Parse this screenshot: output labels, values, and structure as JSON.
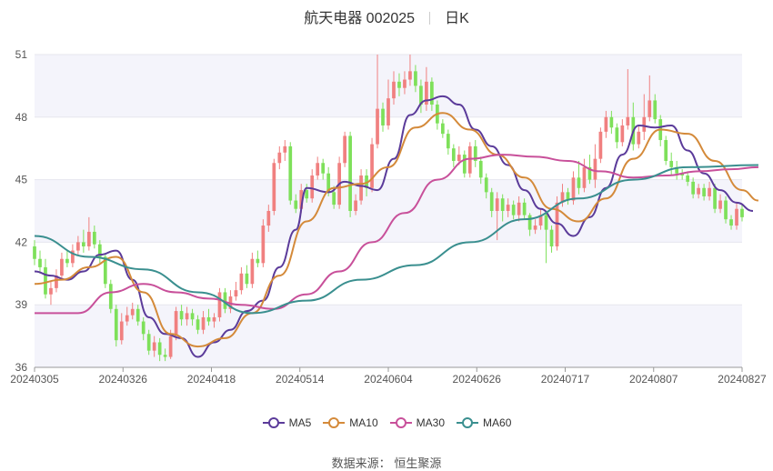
{
  "header": {
    "title": "航天电器 002025",
    "period": "日K"
  },
  "source": {
    "label": "数据来源：",
    "name": "恒生聚源"
  },
  "legend": [
    {
      "name": "MA5",
      "color": "#5b3b9a"
    },
    {
      "name": "MA10",
      "color": "#d48a3a"
    },
    {
      "name": "MA30",
      "color": "#c8509a"
    },
    {
      "name": "MA60",
      "color": "#3a8f8f"
    }
  ],
  "colors": {
    "up": "#f08080",
    "down": "#7ee05a"
  },
  "chart_data": {
    "type": "candlestick",
    "ylim": [
      36,
      51
    ],
    "yticks": [
      36,
      39,
      42,
      45,
      48,
      51
    ],
    "xtick_labels": [
      "20240305",
      "20240326",
      "20240418",
      "20240514",
      "20240604",
      "20240626",
      "20240717",
      "20240807",
      "20240827"
    ],
    "xtick_index": [
      0,
      15,
      30,
      45,
      60,
      75,
      90,
      105,
      120
    ],
    "candles": [
      [
        41.8,
        41.2,
        42.1,
        40.9
      ],
      [
        41.2,
        40.8,
        41.6,
        40.5
      ],
      [
        40.8,
        39.5,
        41.2,
        39.3
      ],
      [
        39.5,
        39.8,
        40.1,
        39.0
      ],
      [
        39.8,
        40.4,
        40.7,
        39.6
      ],
      [
        40.4,
        41.2,
        41.5,
        40.2
      ],
      [
        41.2,
        41.0,
        41.6,
        40.8
      ],
      [
        41.0,
        41.6,
        41.9,
        40.8
      ],
      [
        41.6,
        42.0,
        42.3,
        41.4
      ],
      [
        42.0,
        41.8,
        42.6,
        41.5
      ],
      [
        41.8,
        42.5,
        43.2,
        41.6
      ],
      [
        42.5,
        41.9,
        42.8,
        41.7
      ],
      [
        41.9,
        41.3,
        42.1,
        41.0
      ],
      [
        41.3,
        40.0,
        41.4,
        39.8
      ],
      [
        40.0,
        38.8,
        40.2,
        38.6
      ],
      [
        38.8,
        37.3,
        39.0,
        37.0
      ],
      [
        37.3,
        38.2,
        38.6,
        37.1
      ],
      [
        38.2,
        38.5,
        38.9,
        38.0
      ],
      [
        38.5,
        38.8,
        39.1,
        38.3
      ],
      [
        38.8,
        38.2,
        39.0,
        38.0
      ],
      [
        38.2,
        37.6,
        38.4,
        37.3
      ],
      [
        37.6,
        36.8,
        37.8,
        36.6
      ],
      [
        36.8,
        37.2,
        37.5,
        36.5
      ],
      [
        37.2,
        36.6,
        37.4,
        36.3
      ],
      [
        36.6,
        36.5,
        36.9,
        36.3
      ],
      [
        36.5,
        37.5,
        37.8,
        36.4
      ],
      [
        37.5,
        38.7,
        38.9,
        37.3
      ],
      [
        38.7,
        38.3,
        39.0,
        38.0
      ],
      [
        38.3,
        38.6,
        38.9,
        38.0
      ],
      [
        38.6,
        38.3,
        38.8,
        38.0
      ],
      [
        38.3,
        37.8,
        38.5,
        37.6
      ],
      [
        37.8,
        38.4,
        38.7,
        37.6
      ],
      [
        38.4,
        38.2,
        38.8,
        38.0
      ],
      [
        38.2,
        38.4,
        38.6,
        37.9
      ],
      [
        38.4,
        39.6,
        39.8,
        38.2
      ],
      [
        39.6,
        38.8,
        39.8,
        38.6
      ],
      [
        38.8,
        39.4,
        39.7,
        38.6
      ],
      [
        39.4,
        39.7,
        40.1,
        39.2
      ],
      [
        39.7,
        40.5,
        40.8,
        39.5
      ],
      [
        40.5,
        40.0,
        40.9,
        39.8
      ],
      [
        40.0,
        41.2,
        41.5,
        39.8
      ],
      [
        41.2,
        41.0,
        41.6,
        40.8
      ],
      [
        41.0,
        42.8,
        43.1,
        40.8
      ],
      [
        42.8,
        43.5,
        43.8,
        42.5
      ],
      [
        43.5,
        45.8,
        46.0,
        43.3
      ],
      [
        45.8,
        46.3,
        46.6,
        45.5
      ],
      [
        46.3,
        46.6,
        46.9,
        45.9
      ],
      [
        46.6,
        44.0,
        46.8,
        43.8
      ],
      [
        44.0,
        43.6,
        44.3,
        43.4
      ],
      [
        43.6,
        44.5,
        44.8,
        43.4
      ],
      [
        44.5,
        44.1,
        44.8,
        43.9
      ],
      [
        44.1,
        45.2,
        45.5,
        43.9
      ],
      [
        45.2,
        45.8,
        46.1,
        45.0
      ],
      [
        45.8,
        45.3,
        46.0,
        45.0
      ],
      [
        45.3,
        44.4,
        45.6,
        44.2
      ],
      [
        44.4,
        43.8,
        44.7,
        43.6
      ],
      [
        43.8,
        45.8,
        46.1,
        43.6
      ],
      [
        45.8,
        47.1,
        47.3,
        45.6
      ],
      [
        47.1,
        43.5,
        47.3,
        43.2
      ],
      [
        43.5,
        44.0,
        44.3,
        43.3
      ],
      [
        44.0,
        45.2,
        45.5,
        43.8
      ],
      [
        45.2,
        44.6,
        45.5,
        44.2
      ],
      [
        44.6,
        46.7,
        47.0,
        44.4
      ],
      [
        46.7,
        48.4,
        51.0,
        46.5
      ],
      [
        48.4,
        47.6,
        48.7,
        47.3
      ],
      [
        47.6,
        48.9,
        49.8,
        47.4
      ],
      [
        48.9,
        49.7,
        50.2,
        48.6
      ],
      [
        49.7,
        49.4,
        50.1,
        49.0
      ],
      [
        49.4,
        49.8,
        50.2,
        49.1
      ],
      [
        49.8,
        50.2,
        51.0,
        49.5
      ],
      [
        50.2,
        49.5,
        50.5,
        49.2
      ],
      [
        49.5,
        48.6,
        49.8,
        48.2
      ],
      [
        48.6,
        49.7,
        50.4,
        48.3
      ],
      [
        49.7,
        48.6,
        49.9,
        48.3
      ],
      [
        48.6,
        47.7,
        48.8,
        47.4
      ],
      [
        47.7,
        47.2,
        47.9,
        47.0
      ],
      [
        47.2,
        46.5,
        47.4,
        46.2
      ],
      [
        46.5,
        45.9,
        46.7,
        45.6
      ],
      [
        45.9,
        46.2,
        46.6,
        45.7
      ],
      [
        46.2,
        45.3,
        46.4,
        45.1
      ],
      [
        45.3,
        46.6,
        46.8,
        45.1
      ],
      [
        46.6,
        45.9,
        46.9,
        45.6
      ],
      [
        45.9,
        45.1,
        46.1,
        44.8
      ],
      [
        45.1,
        44.4,
        45.3,
        44.1
      ],
      [
        44.4,
        43.5,
        44.6,
        43.2
      ],
      [
        43.5,
        44.1,
        44.4,
        42.1
      ],
      [
        44.1,
        43.5,
        44.3,
        43.0
      ],
      [
        43.5,
        43.8,
        44.1,
        43.2
      ],
      [
        43.8,
        43.3,
        44.0,
        43.1
      ],
      [
        43.3,
        43.9,
        44.2,
        43.0
      ],
      [
        43.9,
        43.3,
        44.1,
        43.1
      ],
      [
        43.3,
        42.6,
        43.4,
        42.3
      ],
      [
        42.6,
        42.8,
        43.1,
        42.4
      ],
      [
        42.8,
        43.3,
        43.6,
        42.6
      ],
      [
        43.3,
        42.6,
        43.5,
        41.0
      ],
      [
        42.6,
        41.8,
        42.8,
        41.5
      ],
      [
        41.8,
        43.9,
        44.2,
        41.6
      ],
      [
        43.9,
        44.4,
        44.8,
        43.7
      ],
      [
        44.4,
        44.0,
        44.6,
        43.8
      ],
      [
        44.0,
        45.1,
        45.4,
        43.8
      ],
      [
        45.1,
        44.6,
        45.9,
        44.3
      ],
      [
        44.6,
        45.6,
        46.0,
        44.4
      ],
      [
        45.6,
        45.0,
        46.2,
        44.8
      ],
      [
        45.0,
        46.0,
        46.7,
        44.6
      ],
      [
        46.0,
        47.3,
        47.5,
        45.8
      ],
      [
        47.3,
        48.0,
        48.3,
        47.0
      ],
      [
        48.0,
        47.5,
        48.3,
        47.2
      ],
      [
        47.5,
        46.8,
        47.7,
        46.5
      ],
      [
        46.8,
        47.6,
        47.9,
        46.6
      ],
      [
        47.6,
        48.0,
        50.3,
        47.4
      ],
      [
        48.0,
        46.7,
        48.7,
        46.4
      ],
      [
        46.7,
        47.3,
        47.6,
        46.5
      ],
      [
        47.3,
        48.0,
        49.1,
        46.9
      ],
      [
        48.0,
        48.8,
        50.0,
        47.8
      ],
      [
        48.8,
        47.9,
        49.1,
        47.7
      ],
      [
        47.9,
        46.9,
        48.1,
        46.6
      ],
      [
        46.9,
        45.9,
        47.1,
        45.7
      ],
      [
        45.9,
        45.6,
        46.3,
        45.2
      ],
      [
        45.6,
        45.3,
        45.9,
        45.0
      ],
      [
        45.3,
        45.2,
        45.5,
        45.0
      ],
      [
        45.2,
        44.9,
        45.4,
        44.7
      ],
      [
        44.9,
        44.3,
        45.1,
        44.1
      ],
      [
        44.3,
        44.6,
        44.8,
        44.1
      ],
      [
        44.6,
        44.2,
        44.8,
        44.0
      ],
      [
        44.2,
        44.6,
        44.9,
        44.0
      ],
      [
        44.6,
        43.6,
        44.8,
        43.4
      ],
      [
        43.6,
        44.0,
        44.3,
        43.4
      ],
      [
        44.0,
        43.1,
        44.2,
        42.9
      ],
      [
        43.1,
        42.8,
        43.3,
        42.6
      ],
      [
        42.8,
        43.6,
        43.9,
        42.6
      ],
      [
        43.6,
        43.2,
        43.8,
        43.0
      ]
    ],
    "ma_series": {
      "MA5": [
        [
          0,
          40.6
        ],
        [
          3,
          40.4
        ],
        [
          6,
          40.2
        ],
        [
          9,
          40.6
        ],
        [
          12,
          41.4
        ],
        [
          15,
          41.6
        ],
        [
          18,
          40.2
        ],
        [
          21,
          38.4
        ],
        [
          24,
          37.6
        ],
        [
          27,
          37.4
        ],
        [
          30,
          36.5
        ],
        [
          33,
          37.2
        ],
        [
          36,
          37.8
        ],
        [
          39,
          38.7
        ],
        [
          42,
          39.2
        ],
        [
          45,
          40.8
        ],
        [
          48,
          42.6
        ],
        [
          50,
          44.6
        ],
        [
          54,
          44.4
        ],
        [
          57,
          44.9
        ],
        [
          60,
          44.7
        ],
        [
          63,
          44.5
        ],
        [
          66,
          46.0
        ],
        [
          69,
          48.1
        ],
        [
          72,
          48.8
        ],
        [
          75,
          49.0
        ],
        [
          78,
          48.6
        ],
        [
          81,
          47.4
        ],
        [
          84,
          46.6
        ],
        [
          87,
          45.7
        ],
        [
          90,
          44.5
        ],
        [
          93,
          43.6
        ],
        [
          96,
          42.9
        ],
        [
          99,
          42.3
        ],
        [
          102,
          43.2
        ],
        [
          105,
          44.6
        ],
        [
          108,
          46.2
        ],
        [
          111,
          47.6
        ],
        [
          114,
          47.5
        ],
        [
          117,
          47.6
        ],
        [
          120,
          46.4
        ],
        [
          123,
          45.3
        ],
        [
          126,
          44.5
        ],
        [
          129,
          43.9
        ],
        [
          132,
          43.5
        ]
      ],
      "MA10": [
        [
          0,
          40.0
        ],
        [
          5,
          40.2
        ],
        [
          10,
          40.8
        ],
        [
          15,
          41.3
        ],
        [
          20,
          39.6
        ],
        [
          25,
          37.6
        ],
        [
          30,
          37.0
        ],
        [
          35,
          37.4
        ],
        [
          40,
          38.6
        ],
        [
          45,
          40.4
        ],
        [
          50,
          43.0
        ],
        [
          55,
          44.6
        ],
        [
          60,
          44.8
        ],
        [
          65,
          45.6
        ],
        [
          70,
          47.5
        ],
        [
          75,
          48.2
        ],
        [
          80,
          47.4
        ],
        [
          85,
          46.2
        ],
        [
          90,
          45.1
        ],
        [
          95,
          43.6
        ],
        [
          100,
          43.0
        ],
        [
          105,
          44.1
        ],
        [
          110,
          46.0
        ],
        [
          115,
          47.4
        ],
        [
          120,
          47.2
        ],
        [
          125,
          45.9
        ],
        [
          130,
          44.5
        ],
        [
          133,
          44.0
        ]
      ],
      "MA30": [
        [
          0,
          38.6
        ],
        [
          8,
          38.6
        ],
        [
          14,
          39.6
        ],
        [
          20,
          40.0
        ],
        [
          26,
          39.6
        ],
        [
          32,
          39.3
        ],
        [
          38,
          39.0
        ],
        [
          44,
          38.8
        ],
        [
          50,
          39.5
        ],
        [
          56,
          40.6
        ],
        [
          62,
          42.0
        ],
        [
          68,
          43.4
        ],
        [
          74,
          45.0
        ],
        [
          80,
          46.0
        ],
        [
          86,
          46.2
        ],
        [
          92,
          46.1
        ],
        [
          98,
          45.9
        ],
        [
          104,
          45.4
        ],
        [
          110,
          45.1
        ],
        [
          116,
          45.2
        ],
        [
          122,
          45.4
        ],
        [
          128,
          45.5
        ],
        [
          133,
          45.6
        ]
      ],
      "MA60": [
        [
          0,
          42.3
        ],
        [
          10,
          41.3
        ],
        [
          20,
          40.7
        ],
        [
          30,
          39.6
        ],
        [
          40,
          38.6
        ],
        [
          50,
          39.2
        ],
        [
          60,
          40.2
        ],
        [
          70,
          40.9
        ],
        [
          80,
          42.0
        ],
        [
          90,
          43.1
        ],
        [
          100,
          44.1
        ],
        [
          110,
          45.0
        ],
        [
          120,
          45.6
        ],
        [
          133,
          45.7
        ]
      ]
    }
  }
}
